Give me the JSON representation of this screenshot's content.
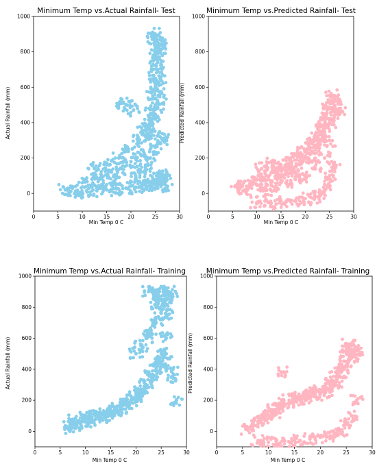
{
  "chart_data": [
    {
      "type": "scatter",
      "title": "Minimum Temp vs.Actual Rainfall- Test",
      "xlabel": "Min Temp 0 C",
      "ylabel": "Actual Rainfall (mm)",
      "xlim": [
        0,
        30
      ],
      "ylim": [
        -100,
        1000
      ],
      "xticks": [
        "0",
        "5",
        "10",
        "15",
        "20",
        "25",
        "30"
      ],
      "yticks": [
        "0",
        "200",
        "400",
        "600",
        "800",
        "1000"
      ],
      "color": "#87CEEB",
      "grid": false,
      "series": [
        {
          "x": [
            6.5,
            7.5,
            9,
            11,
            13,
            15,
            17,
            19,
            21,
            22,
            23,
            24,
            24.5,
            25,
            25.5,
            26,
            26.5,
            27,
            27.5,
            10,
            12,
            14,
            16,
            18,
            20,
            22,
            23,
            24,
            25,
            25,
            25.5,
            26,
            26,
            25,
            24.5,
            25,
            26,
            12.5,
            15.5,
            17.5,
            19.5,
            21.5,
            22.5,
            23.5,
            24,
            24.5,
            25,
            25.5,
            26,
            25.5,
            25,
            24,
            26.5,
            18,
            19,
            20.5,
            14,
            16.5,
            21,
            22,
            23,
            24,
            25,
            26,
            25.2,
            25.8
          ],
          "y": [
            20,
            10,
            5,
            8,
            15,
            20,
            25,
            30,
            35,
            40,
            45,
            50,
            60,
            70,
            80,
            90,
            100,
            80,
            40,
            60,
            80,
            100,
            120,
            140,
            180,
            220,
            300,
            400,
            500,
            600,
            700,
            800,
            870,
            900,
            880,
            820,
            650,
            140,
            160,
            200,
            250,
            300,
            350,
            380,
            450,
            550,
            650,
            740,
            560,
            480,
            420,
            350,
            300,
            510,
            500,
            470,
            50,
            70,
            90,
            120,
            160,
            200,
            260,
            320,
            760,
            840
          ]
        }
      ]
    },
    {
      "type": "scatter",
      "title": "Minimum Temp vs.Predicted Rainfall- Test",
      "xlabel": "Min Temp 0 C",
      "ylabel": "Predicted Rainfall (mm)",
      "xlim": [
        0,
        30
      ],
      "ylim": [
        -100,
        1000
      ],
      "xticks": [
        "0",
        "5",
        "10",
        "15",
        "20",
        "25",
        "30"
      ],
      "yticks": [
        "0",
        "200",
        "400",
        "600",
        "800",
        "1000"
      ],
      "color": "#FFB6C1",
      "grid": false,
      "series": [
        {
          "x": [
            6,
            7,
            8,
            9,
            10,
            11,
            12,
            13,
            14,
            15,
            16,
            17,
            18,
            19,
            20,
            21,
            22,
            23,
            24,
            25,
            26,
            27,
            10,
            12,
            14,
            16,
            18,
            20,
            22,
            23,
            24,
            25,
            26,
            25.5,
            24.5,
            23.5,
            22.5,
            21.5,
            11,
            13,
            15,
            17,
            19,
            21,
            23,
            24,
            25,
            26,
            26.5,
            25,
            24,
            22,
            20,
            18,
            16,
            14,
            12
          ],
          "y": [
            30,
            40,
            20,
            60,
            80,
            50,
            100,
            120,
            110,
            130,
            120,
            140,
            150,
            180,
            200,
            220,
            260,
            300,
            350,
            400,
            500,
            480,
            -50,
            -40,
            -60,
            -50,
            -40,
            -30,
            -20,
            0,
            50,
            100,
            150,
            550,
            470,
            380,
            320,
            280,
            140,
            180,
            160,
            200,
            230,
            260,
            350,
            420,
            480,
            540,
            450,
            300,
            200,
            150,
            100,
            80,
            60,
            40,
            20
          ]
        }
      ]
    },
    {
      "type": "scatter",
      "title": "Minimum Temp vs.Actual Rainfall- Training",
      "xlabel": "Min Temp 0 C",
      "ylabel": "Actual Rainfall (mm)",
      "xlim": [
        0,
        30
      ],
      "ylim": [
        -100,
        1000
      ],
      "xticks": [
        "0",
        "5",
        "10",
        "15",
        "20",
        "25",
        "30"
      ],
      "yticks": [
        "0",
        "200",
        "400",
        "600",
        "800",
        "1000"
      ],
      "color": "#87CEEB",
      "grid": false,
      "series": [
        {
          "x": [
            6.5,
            7,
            8,
            9,
            10,
            11,
            12,
            13,
            14,
            15,
            16,
            17,
            18,
            19,
            20,
            21,
            22,
            23,
            24,
            25,
            26,
            27,
            28,
            8,
            10,
            12,
            14,
            16,
            18,
            20,
            21,
            22,
            23,
            24,
            25,
            26,
            27,
            20,
            21,
            22,
            23,
            24,
            25,
            26,
            27,
            22.5,
            23.5,
            24.5,
            25.5,
            26.5,
            25,
            24,
            26
          ],
          "y": [
            20,
            30,
            40,
            50,
            60,
            70,
            80,
            90,
            100,
            110,
            130,
            150,
            170,
            200,
            220,
            260,
            300,
            350,
            400,
            450,
            500,
            400,
            200,
            80,
            90,
            100,
            120,
            150,
            180,
            220,
            260,
            300,
            360,
            420,
            500,
            600,
            350,
            500,
            550,
            600,
            650,
            700,
            760,
            820,
            880,
            900,
            880,
            900,
            910,
            900,
            850,
            800,
            750
          ]
        }
      ]
    },
    {
      "type": "scatter",
      "title": "Minimum Temp vs.Predicted Rainfall- Training",
      "xlabel": "Min Temp 0 C",
      "ylabel": "Predicted Rainfall (mm)",
      "xlim": [
        0,
        30
      ],
      "ylim": [
        -100,
        1000
      ],
      "xticks": [
        "0",
        "5",
        "10",
        "15",
        "20",
        "25",
        "30"
      ],
      "yticks": [
        "0",
        "200",
        "400",
        "600",
        "800",
        "1000"
      ],
      "color": "#FFB6C1",
      "grid": false,
      "series": [
        {
          "x": [
            6,
            7,
            8,
            9,
            10,
            11,
            12,
            13,
            14,
            15,
            16,
            17,
            18,
            19,
            20,
            21,
            22,
            23,
            24,
            25,
            26,
            27,
            8,
            10,
            12,
            14,
            16,
            18,
            20,
            22,
            23,
            24,
            25,
            26,
            27,
            9,
            11,
            13,
            15,
            17,
            19,
            21,
            23,
            24,
            25,
            26,
            26.5,
            25.5,
            24.5,
            13,
            22
          ],
          "y": [
            10,
            40,
            60,
            80,
            100,
            120,
            150,
            180,
            200,
            210,
            220,
            230,
            240,
            250,
            260,
            270,
            300,
            350,
            420,
            500,
            550,
            520,
            -60,
            -70,
            -80,
            -70,
            -60,
            -50,
            -40,
            -30,
            -20,
            0,
            50,
            100,
            200,
            100,
            140,
            170,
            190,
            210,
            230,
            250,
            300,
            380,
            450,
            520,
            480,
            560,
            400,
            380,
            320
          ]
        }
      ]
    }
  ]
}
